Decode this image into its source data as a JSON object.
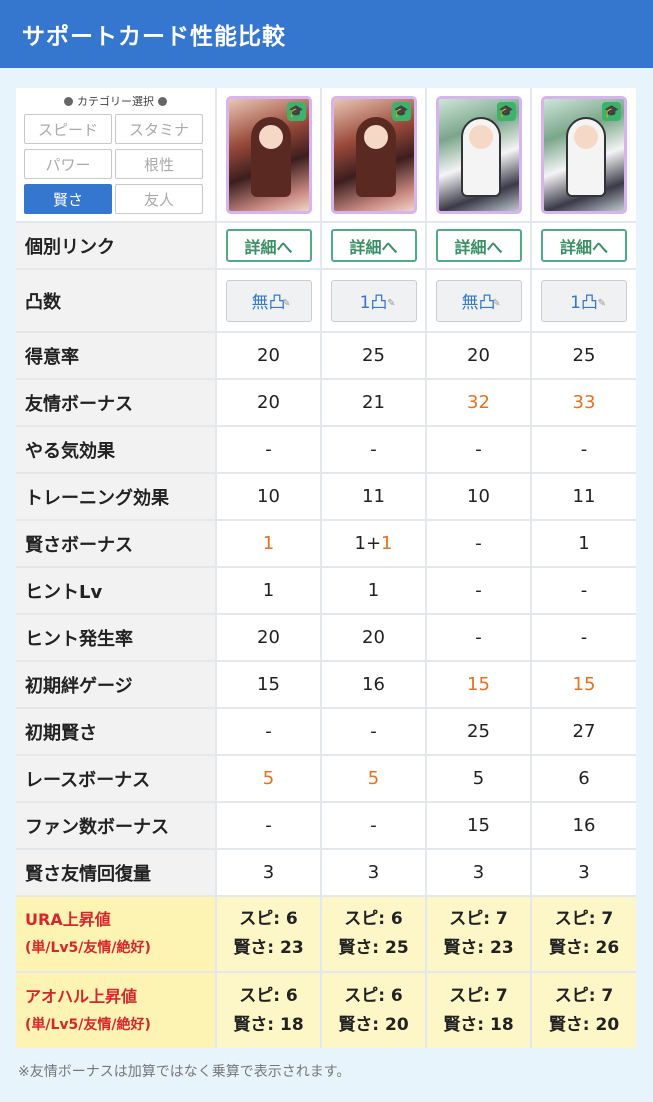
{
  "header": {
    "title": "サポートカード性能比較"
  },
  "category": {
    "title": "カテゴリー選択",
    "buttons": [
      {
        "label": "スピード",
        "active": false
      },
      {
        "label": "スタミナ",
        "active": false
      },
      {
        "label": "パワー",
        "active": false
      },
      {
        "label": "根性",
        "active": false
      },
      {
        "label": "賢さ",
        "active": true
      },
      {
        "label": "友人",
        "active": false
      }
    ]
  },
  "cards": [
    {
      "style": "c1",
      "link": "詳細へ",
      "limit_break": "無凸"
    },
    {
      "style": "c1",
      "link": "詳細へ",
      "limit_break": "1凸"
    },
    {
      "style": "c2",
      "link": "詳細へ",
      "limit_break": "無凸"
    },
    {
      "style": "c2",
      "link": "詳細へ",
      "limit_break": "1凸"
    }
  ],
  "labels": {
    "link": "個別リンク",
    "limit": "凸数"
  },
  "rows": [
    {
      "label": "得意率",
      "values": [
        {
          "v": "20"
        },
        {
          "v": "25"
        },
        {
          "v": "20"
        },
        {
          "v": "25"
        }
      ]
    },
    {
      "label": "友情ボーナス",
      "values": [
        {
          "v": "20"
        },
        {
          "v": "21"
        },
        {
          "v": "32",
          "hl": true
        },
        {
          "v": "33",
          "hl": true
        }
      ]
    },
    {
      "label": "やる気効果",
      "values": [
        {
          "v": "-"
        },
        {
          "v": "-"
        },
        {
          "v": "-"
        },
        {
          "v": "-"
        }
      ]
    },
    {
      "label": "トレーニング効果",
      "values": [
        {
          "v": "10"
        },
        {
          "v": "11"
        },
        {
          "v": "10"
        },
        {
          "v": "11"
        }
      ]
    },
    {
      "label": "賢さボーナス",
      "values": [
        {
          "v": "1",
          "hl": true
        },
        {
          "v": "1+",
          "extra": "1"
        },
        {
          "v": "-"
        },
        {
          "v": "1"
        }
      ]
    },
    {
      "label": "ヒントLv",
      "values": [
        {
          "v": "1"
        },
        {
          "v": "1"
        },
        {
          "v": "-"
        },
        {
          "v": "-"
        }
      ]
    },
    {
      "label": "ヒント発生率",
      "values": [
        {
          "v": "20"
        },
        {
          "v": "20"
        },
        {
          "v": "-"
        },
        {
          "v": "-"
        }
      ]
    },
    {
      "label": "初期絆ゲージ",
      "values": [
        {
          "v": "15"
        },
        {
          "v": "16"
        },
        {
          "v": "15",
          "hl": true
        },
        {
          "v": "15",
          "hl": true
        }
      ]
    },
    {
      "label": "初期賢さ",
      "values": [
        {
          "v": "-"
        },
        {
          "v": "-"
        },
        {
          "v": "25"
        },
        {
          "v": "27"
        }
      ]
    },
    {
      "label": "レースボーナス",
      "values": [
        {
          "v": "5",
          "hl": true
        },
        {
          "v": "5",
          "hl": true
        },
        {
          "v": "5"
        },
        {
          "v": "6"
        }
      ]
    },
    {
      "label": "ファン数ボーナス",
      "values": [
        {
          "v": "-"
        },
        {
          "v": "-"
        },
        {
          "v": "15"
        },
        {
          "v": "16"
        }
      ]
    },
    {
      "label": "賢さ友情回復量",
      "values": [
        {
          "v": "3"
        },
        {
          "v": "3"
        },
        {
          "v": "3"
        },
        {
          "v": "3"
        }
      ]
    }
  ],
  "gain_rows": [
    {
      "label": "URA上昇値",
      "sub": "(単/Lv5/友情/絶好)",
      "values": [
        [
          "スピ: 6",
          "賢さ: 23"
        ],
        [
          "スピ: 6",
          "賢さ: 25"
        ],
        [
          "スピ: 7",
          "賢さ: 23"
        ],
        [
          "スピ: 7",
          "賢さ: 26"
        ]
      ]
    },
    {
      "label": "アオハル上昇値",
      "sub": "(単/Lv5/友情/絶好)",
      "values": [
        [
          "スピ: 6",
          "賢さ: 18"
        ],
        [
          "スピ: 6",
          "賢さ: 20"
        ],
        [
          "スピ: 7",
          "賢さ: 18"
        ],
        [
          "スピ: 7",
          "賢さ: 20"
        ]
      ]
    }
  ],
  "note": "※友情ボーナスは加算ではなく乗算で表示されます。",
  "colors": {
    "header": "#3577cf",
    "accent": "#e8711d",
    "label_red": "#d7262b",
    "link_green": "#4cae82"
  }
}
